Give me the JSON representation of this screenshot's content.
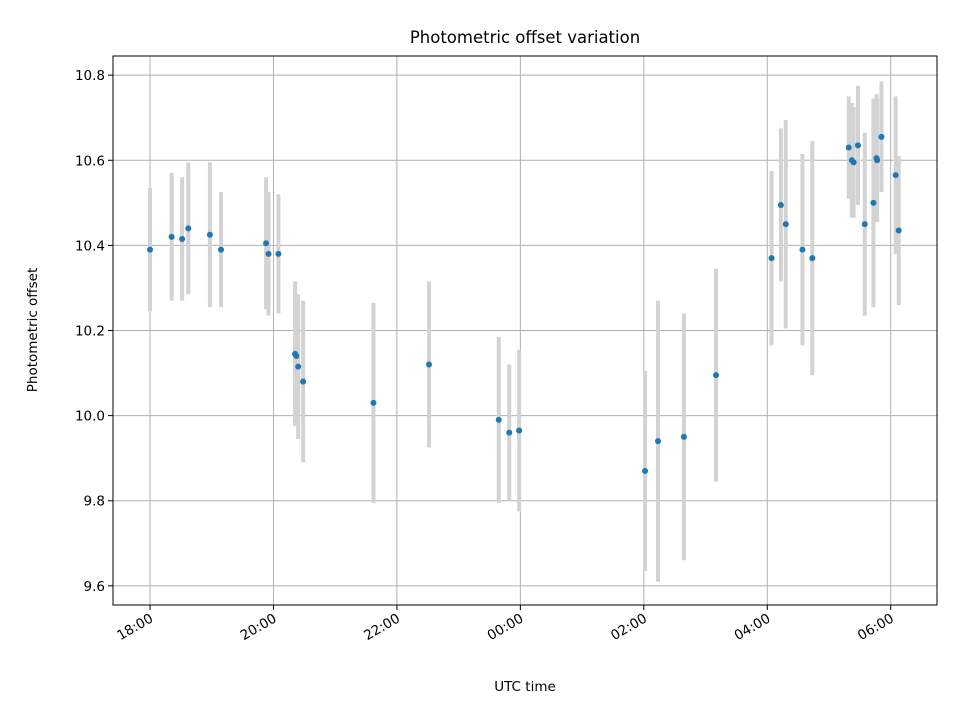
{
  "chart_data": {
    "type": "scatter",
    "title": "Photometric offset variation",
    "xlabel": "UTC time",
    "ylabel": "Photometric offset",
    "x_unit": "hours (UTC, day 1 starting 18:00)",
    "xlim": [
      17.4,
      30.75
    ],
    "ylim": [
      9.555,
      10.845
    ],
    "grid": true,
    "x_ticks": [
      {
        "value": 18,
        "label": "18:00"
      },
      {
        "value": 20,
        "label": "20:00"
      },
      {
        "value": 22,
        "label": "22:00"
      },
      {
        "value": 24,
        "label": "00:00"
      },
      {
        "value": 26,
        "label": "02:00"
      },
      {
        "value": 28,
        "label": "04:00"
      },
      {
        "value": 30,
        "label": "06:00"
      }
    ],
    "y_ticks": [
      {
        "value": 9.6,
        "label": "9.6"
      },
      {
        "value": 9.8,
        "label": "9.8"
      },
      {
        "value": 10.0,
        "label": "10.0"
      },
      {
        "value": 10.2,
        "label": "10.2"
      },
      {
        "value": 10.4,
        "label": "10.4"
      },
      {
        "value": 10.6,
        "label": "10.6"
      },
      {
        "value": 10.8,
        "label": "10.8"
      }
    ],
    "colors": {
      "point": "#1f77b4",
      "errorbar": "#d3d3d3",
      "grid": "#b0b0b0"
    },
    "points": [
      {
        "x": 18.0,
        "y": 10.39,
        "yerr": 0.145
      },
      {
        "x": 18.35,
        "y": 10.42,
        "yerr": 0.15
      },
      {
        "x": 18.52,
        "y": 10.415,
        "yerr": 0.145
      },
      {
        "x": 18.62,
        "y": 10.44,
        "yerr": 0.155
      },
      {
        "x": 18.97,
        "y": 10.425,
        "yerr": 0.17
      },
      {
        "x": 19.15,
        "y": 10.39,
        "yerr": 0.135
      },
      {
        "x": 19.88,
        "y": 10.405,
        "yerr": 0.155
      },
      {
        "x": 19.92,
        "y": 10.38,
        "yerr": 0.145
      },
      {
        "x": 20.08,
        "y": 10.38,
        "yerr": 0.14
      },
      {
        "x": 20.35,
        "y": 10.145,
        "yerr": 0.17
      },
      {
        "x": 20.37,
        "y": 10.14,
        "yerr": 0.145
      },
      {
        "x": 20.4,
        "y": 10.115,
        "yerr": 0.17
      },
      {
        "x": 20.48,
        "y": 10.08,
        "yerr": 0.19
      },
      {
        "x": 21.62,
        "y": 10.03,
        "yerr": 0.235
      },
      {
        "x": 22.52,
        "y": 10.12,
        "yerr": 0.195
      },
      {
        "x": 23.65,
        "y": 9.99,
        "yerr": 0.195
      },
      {
        "x": 23.82,
        "y": 9.96,
        "yerr": 0.16
      },
      {
        "x": 23.98,
        "y": 9.965,
        "yerr": 0.19
      },
      {
        "x": 26.02,
        "y": 9.87,
        "yerr": 0.235
      },
      {
        "x": 26.23,
        "y": 9.94,
        "yerr": 0.33
      },
      {
        "x": 26.65,
        "y": 9.95,
        "yerr": 0.29
      },
      {
        "x": 27.17,
        "y": 10.095,
        "yerr": 0.25
      },
      {
        "x": 28.07,
        "y": 10.37,
        "yerr": 0.205
      },
      {
        "x": 28.22,
        "y": 10.495,
        "yerr": 0.18
      },
      {
        "x": 28.3,
        "y": 10.45,
        "yerr": 0.245
      },
      {
        "x": 28.57,
        "y": 10.39,
        "yerr": 0.225
      },
      {
        "x": 28.73,
        "y": 10.37,
        "yerr": 0.275
      },
      {
        "x": 29.32,
        "y": 10.63,
        "yerr": 0.12
      },
      {
        "x": 29.37,
        "y": 10.6,
        "yerr": 0.135
      },
      {
        "x": 29.4,
        "y": 10.595,
        "yerr": 0.13
      },
      {
        "x": 29.47,
        "y": 10.635,
        "yerr": 0.14
      },
      {
        "x": 29.58,
        "y": 10.45,
        "yerr": 0.215
      },
      {
        "x": 29.72,
        "y": 10.5,
        "yerr": 0.245
      },
      {
        "x": 29.77,
        "y": 10.605,
        "yerr": 0.15
      },
      {
        "x": 29.78,
        "y": 10.6,
        "yerr": 0.145
      },
      {
        "x": 29.85,
        "y": 10.655,
        "yerr": 0.13
      },
      {
        "x": 30.08,
        "y": 10.565,
        "yerr": 0.185
      },
      {
        "x": 30.13,
        "y": 10.435,
        "yerr": 0.175
      }
    ]
  }
}
